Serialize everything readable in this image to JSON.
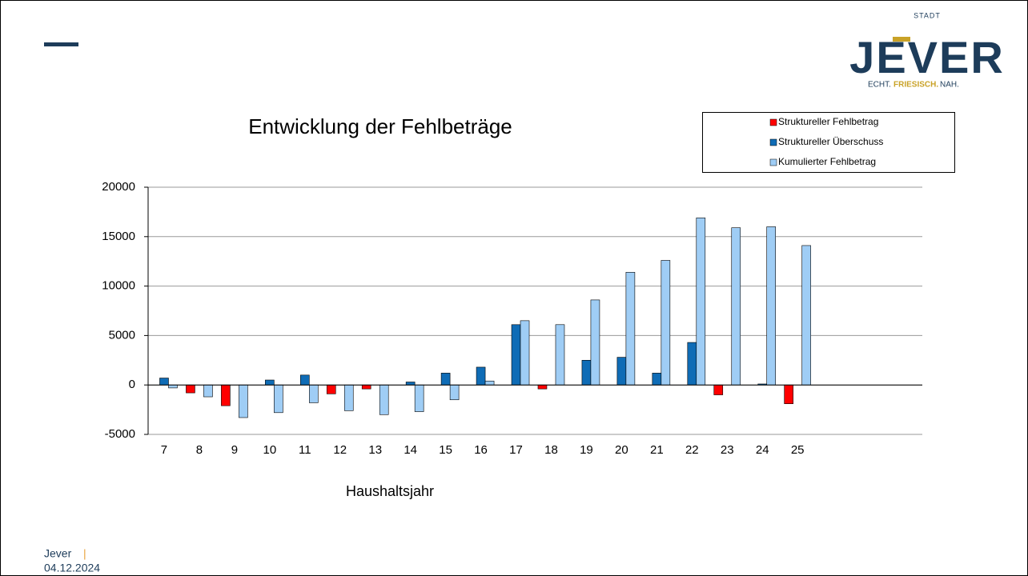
{
  "logo": {
    "top": "STADT",
    "name": "JEVER",
    "tagline": [
      "ECHT.",
      "FRIESISCH.",
      "NAH."
    ]
  },
  "footer": {
    "place": "Jever",
    "separator": "|",
    "date": "04.12.2024"
  },
  "chart_data": {
    "type": "bar",
    "title": "Entwicklung der Fehlbeträge",
    "x_label": "Haushaltsjahr",
    "categories": [
      "7",
      "8",
      "9",
      "10",
      "11",
      "12",
      "13",
      "14",
      "15",
      "16",
      "17",
      "18",
      "19",
      "20",
      "21",
      "22",
      "23",
      "24",
      "25",
      null,
      null,
      null
    ],
    "series": [
      {
        "name": "Struktureller Fehlbetrag",
        "color": "#ff0000",
        "values": [
          null,
          -800,
          -2100,
          null,
          null,
          -900,
          -400,
          null,
          null,
          null,
          null,
          -400,
          null,
          null,
          null,
          null,
          -1000,
          null,
          -1900,
          null,
          null,
          null
        ]
      },
      {
        "name": "Struktureller Überschuss",
        "color": "#0f6cb6",
        "values": [
          700,
          null,
          null,
          500,
          1000,
          null,
          null,
          300,
          1200,
          1800,
          6100,
          null,
          2500,
          2800,
          1200,
          4300,
          null,
          100,
          null,
          null,
          null,
          null
        ]
      },
      {
        "name": "Kumulierter Fehlbetrag",
        "color": "#9fcdf5",
        "values": [
          -300,
          -1200,
          -3300,
          -2800,
          -1800,
          -2600,
          -3000,
          -2700,
          -1500,
          400,
          6500,
          6100,
          8600,
          11400,
          12600,
          16900,
          15900,
          16000,
          14100,
          null,
          null,
          null
        ]
      }
    ],
    "ylim": [
      -5000,
      20000
    ],
    "yticks": [
      -5000,
      0,
      5000,
      10000,
      15000,
      20000
    ],
    "grid": true
  }
}
